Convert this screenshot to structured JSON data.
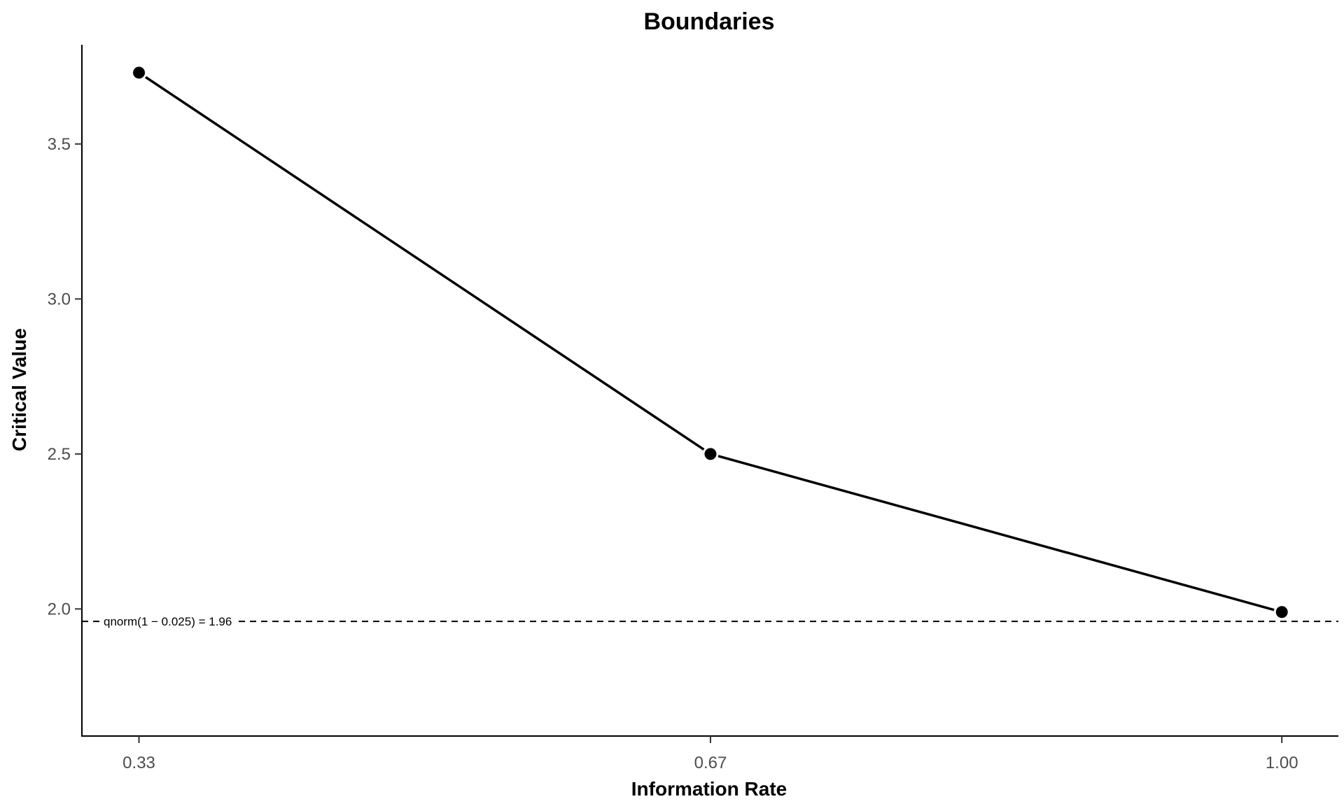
{
  "chart_data": {
    "type": "line",
    "title": "Boundaries",
    "xlabel": "Information Rate",
    "ylabel": "Critical Value",
    "x": [
      0.3333,
      0.6667,
      1.0
    ],
    "x_tick_labels": [
      "0.33",
      "0.67",
      "1.00"
    ],
    "series": [
      {
        "values": [
          3.73,
          2.5,
          1.99
        ],
        "color": "#000000",
        "marker": "circle"
      }
    ],
    "ylim": [
      1.59,
      3.82
    ],
    "xlim": [
      0.3,
      1.033
    ],
    "y_ticks": [
      2.0,
      2.5,
      3.0,
      3.5
    ],
    "y_tick_labels": [
      "2.0",
      "2.5",
      "3.0",
      "3.5"
    ],
    "reference_line": {
      "y": 1.96,
      "style": "dashed",
      "label": "qnorm(1 − 0.025) = 1.96"
    },
    "grid": false,
    "legend": "none"
  }
}
